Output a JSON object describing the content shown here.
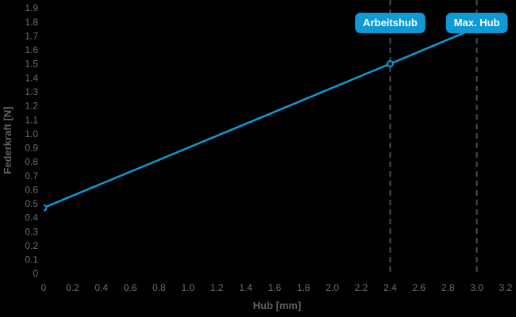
{
  "chart_data": {
    "type": "line",
    "title": "",
    "xlabel": "Hub [mm]",
    "ylabel": "Federkraft [N]",
    "xlim": [
      0,
      3.2
    ],
    "ylim": [
      0,
      1.9
    ],
    "x_ticks": [
      0,
      0.2,
      0.4,
      0.6,
      0.8,
      1.0,
      1.2,
      1.4,
      1.6,
      1.8,
      2.0,
      2.2,
      2.4,
      2.6,
      2.8,
      3.0,
      3.2
    ],
    "x_tick_labels": [
      "0",
      "0.2",
      "0.4",
      "0.6",
      "0.8",
      "1.0",
      "1.2",
      "1.4",
      "1.6",
      "1.8",
      "2.0",
      "2.2",
      "2.4",
      "2.6",
      "2.8",
      "3.0",
      "3.2"
    ],
    "y_ticks": [
      0,
      0.1,
      0.2,
      0.3,
      0.4,
      0.5,
      0.6,
      0.7,
      0.8,
      0.9,
      1.0,
      1.1,
      1.2,
      1.3,
      1.4,
      1.5,
      1.6,
      1.7,
      1.8,
      1.9
    ],
    "y_tick_labels": [
      "0",
      "0.1",
      "0.2",
      "0.3",
      "0.4",
      "0.5",
      "0.6",
      "0.7",
      "0.8",
      "0.9",
      "1.0",
      "1.1",
      "1.2",
      "1.3",
      "1.4",
      "1.5",
      "1.6",
      "1.7",
      "1.8",
      "1.9"
    ],
    "grid": false,
    "legend": "none",
    "series": [
      {
        "name": "Federkraft",
        "x": [
          0,
          2.4,
          3.0
        ],
        "y": [
          0.47,
          1.5,
          1.76
        ],
        "marker_points": [
          [
            0,
            0.47
          ],
          [
            2.4,
            1.5
          ]
        ],
        "marker_style": "open-circle"
      }
    ],
    "annotations": [
      {
        "label": "Arbeitshub",
        "x": 2.4,
        "style": "dashed-vline-with-badge"
      },
      {
        "label": "Max. Hub",
        "x": 3.0,
        "style": "dashed-vline-with-badge"
      }
    ]
  },
  "colors": {
    "background": "#000000",
    "accent_blue": "#0f9ad6",
    "tick_label": "#6e6e6e",
    "axis_title": "#616161",
    "dashed_line": "#4d4d4d",
    "badge_fill": "#0f9ad6",
    "badge_text": "#ffffff",
    "marker_fill": "#000000"
  }
}
